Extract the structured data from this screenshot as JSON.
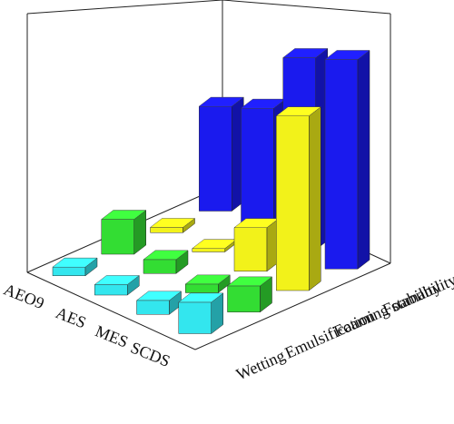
{
  "chart_data": {
    "type": "bar3d",
    "categories": [
      "AEO9",
      "AES",
      "MES",
      "SCDS"
    ],
    "series": [
      {
        "name": "Wetting",
        "color": "#33e6ee",
        "values": [
          5,
          6,
          8,
          18
        ]
      },
      {
        "name": "Emulsification",
        "color": "#33dd33",
        "values": [
          20,
          8,
          5,
          15
        ]
      },
      {
        "name": "Foaming stability",
        "color": "#f2f21a",
        "values": [
          3,
          2,
          25,
          100
        ]
      },
      {
        "name": "Foamability",
        "color": "#1a1aee",
        "values": [
          60,
          70,
          110,
          120
        ]
      }
    ],
    "ylim": [
      0,
      130
    ]
  }
}
